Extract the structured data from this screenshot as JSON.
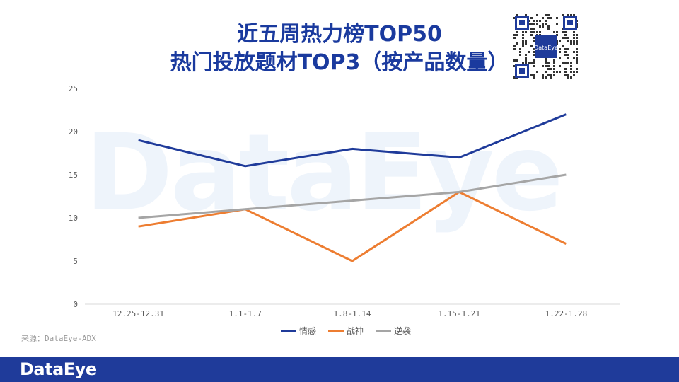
{
  "title_line1": "近五周热力榜TOP50",
  "title_line2": "热门投放题材TOP3（按产品数量）",
  "source": "来源：DataEye-ADX",
  "logo": "DataEye",
  "qr_logo": "DataEye",
  "watermark": "DataEye",
  "colors": {
    "title": "#1a3a9e",
    "footer": "#1f3b9a",
    "series": [
      "#1f3b9a",
      "#ed7d31",
      "#a5a5a5"
    ]
  },
  "chart_data": {
    "type": "line",
    "categories": [
      "12.25-12.31",
      "1.1-1.7",
      "1.8-1.14",
      "1.15-1.21",
      "1.22-1.28"
    ],
    "y_ticks": [
      0,
      5,
      10,
      15,
      20,
      25
    ],
    "ylim": [
      0,
      25
    ],
    "grid": false,
    "legend_position": "bottom",
    "series": [
      {
        "name": "情感",
        "values": [
          19,
          16,
          18,
          17,
          22
        ]
      },
      {
        "name": "战神",
        "values": [
          9,
          11,
          5,
          13,
          7
        ]
      },
      {
        "name": "逆袭",
        "values": [
          10,
          11,
          12,
          13,
          15
        ]
      }
    ]
  }
}
